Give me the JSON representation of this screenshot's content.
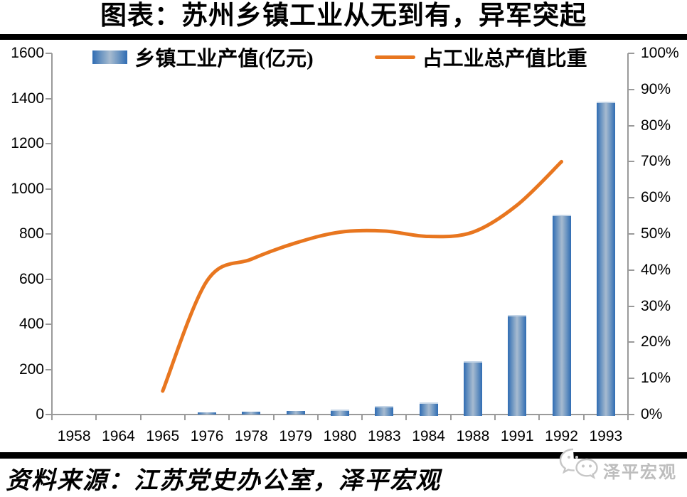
{
  "header": {
    "title": "图表：苏州乡镇工业从无到有，异军突起"
  },
  "legend": {
    "bar_label": "乡镇工业产值(亿元)",
    "line_label": "占工业总产值比重"
  },
  "chart_data": {
    "type": "bar",
    "subtype": "combo-bar-line",
    "title": "图表：苏州乡镇工业从无到有，异军突起",
    "categories": [
      "1958",
      "1964",
      "1965",
      "1976",
      "1978",
      "1979",
      "1980",
      "1983",
      "1984",
      "1988",
      "1991",
      "1992",
      "1993"
    ],
    "series": [
      {
        "name": "乡镇工业产值(亿元)",
        "type": "bar",
        "axis": "left",
        "values": [
          0,
          0,
          0,
          10,
          13,
          17,
          23,
          38,
          55,
          237,
          440,
          886,
          1385
        ]
      },
      {
        "name": "占工业总产值比重",
        "type": "line",
        "axis": "right",
        "unit": "%",
        "values": [
          null,
          null,
          6.5,
          37,
          43,
          47.5,
          50.5,
          50.8,
          49.3,
          50.5,
          58,
          70,
          null
        ]
      }
    ],
    "left_axis": {
      "min": 0,
      "max": 1600,
      "step": 200,
      "ticks": [
        "0",
        "200",
        "400",
        "600",
        "800",
        "1000",
        "1200",
        "1400",
        "1600"
      ]
    },
    "right_axis": {
      "min": 0,
      "max": 100,
      "step": 10,
      "ticks": [
        "0%",
        "10%",
        "20%",
        "30%",
        "40%",
        "50%",
        "60%",
        "70%",
        "80%",
        "90%",
        "100%"
      ]
    },
    "grid": false,
    "legend_position": "top",
    "colors": {
      "bar_edge": "#2f6cb3",
      "bar_mid": "#a7bbd0",
      "bar_cap": "#c3d4e6",
      "line": "#e8761f",
      "axis": "#9a9a9a"
    }
  },
  "footer": {
    "source": "资料来源：江苏党史办公室，泽平宏观",
    "logo_text": "泽平宏观"
  }
}
